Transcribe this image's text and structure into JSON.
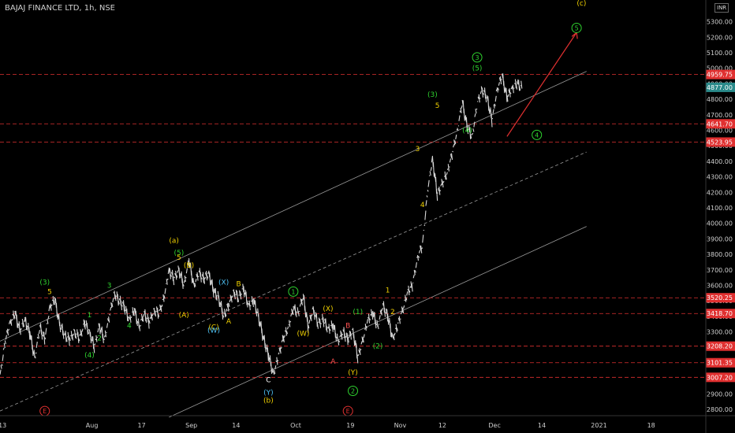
{
  "header": {
    "symbol_title": "BAJAJ FINANCE LTD, 1h, NSE",
    "currency": "INR"
  },
  "chart_data": {
    "type": "line",
    "title": "BAJAJ FINANCE LTD, 1h, NSE",
    "xlabel": "",
    "ylabel": "",
    "ylim": [
      2760,
      5440
    ],
    "grid": false,
    "y_ticks": [
      2800,
      2900,
      3000,
      3100,
      3200,
      3300,
      3400,
      3500,
      3600,
      3700,
      3800,
      3900,
      4000,
      4100,
      4200,
      4300,
      4400,
      4500,
      4600,
      4700,
      4800,
      4900,
      5000,
      5100,
      5200,
      5300
    ],
    "x_ticks": [
      "13",
      "Aug",
      "17",
      "Sep",
      "14",
      "Oct",
      "19",
      "Nov",
      "12",
      "Dec",
      "14",
      "2021",
      "18"
    ],
    "x_tick_pos": [
      0.5,
      18.5,
      28.5,
      38.5,
      47.5,
      59.5,
      70.5,
      80.5,
      89,
      99.5,
      109,
      120.5,
      131
    ],
    "x_range": [
      0,
      142
    ],
    "series": [
      {
        "values": [
          [
            0,
            3010
          ],
          [
            1,
            3230
          ],
          [
            2,
            3360
          ],
          [
            3,
            3420
          ],
          [
            4,
            3310
          ],
          [
            5,
            3380
          ],
          [
            6,
            3290
          ],
          [
            7,
            3130
          ],
          [
            8,
            3330
          ],
          [
            9,
            3250
          ],
          [
            10,
            3460
          ],
          [
            11,
            3510
          ],
          [
            12,
            3350
          ],
          [
            13,
            3280
          ],
          [
            14,
            3250
          ],
          [
            15,
            3300
          ],
          [
            16,
            3260
          ],
          [
            17,
            3360
          ],
          [
            18,
            3300
          ],
          [
            19,
            3200
          ],
          [
            20,
            3340
          ],
          [
            21,
            3250
          ],
          [
            22,
            3400
          ],
          [
            23,
            3550
          ],
          [
            24,
            3500
          ],
          [
            25,
            3460
          ],
          [
            26,
            3380
          ],
          [
            27,
            3440
          ],
          [
            28,
            3330
          ],
          [
            29,
            3420
          ],
          [
            30,
            3360
          ],
          [
            31,
            3440
          ],
          [
            32,
            3420
          ],
          [
            33,
            3520
          ],
          [
            34,
            3700
          ],
          [
            35,
            3640
          ],
          [
            36,
            3700
          ],
          [
            37,
            3600
          ],
          [
            38,
            3760
          ],
          [
            39,
            3600
          ],
          [
            40,
            3680
          ],
          [
            41,
            3640
          ],
          [
            42,
            3680
          ],
          [
            43,
            3560
          ],
          [
            44,
            3520
          ],
          [
            45,
            3400
          ],
          [
            46,
            3470
          ],
          [
            47,
            3560
          ],
          [
            48,
            3520
          ],
          [
            49,
            3580
          ],
          [
            50,
            3470
          ],
          [
            51,
            3500
          ],
          [
            52,
            3400
          ],
          [
            53,
            3260
          ],
          [
            54,
            3150
          ],
          [
            55,
            3030
          ],
          [
            56,
            3140
          ],
          [
            57,
            3260
          ],
          [
            58,
            3330
          ],
          [
            59,
            3450
          ],
          [
            60,
            3420
          ],
          [
            61,
            3530
          ],
          [
            62,
            3330
          ],
          [
            63,
            3450
          ],
          [
            64,
            3350
          ],
          [
            65,
            3380
          ],
          [
            66,
            3320
          ],
          [
            67,
            3340
          ],
          [
            68,
            3240
          ],
          [
            69,
            3300
          ],
          [
            70,
            3250
          ],
          [
            71,
            3310
          ],
          [
            72,
            3130
          ],
          [
            73,
            3250
          ],
          [
            74,
            3380
          ],
          [
            75,
            3420
          ],
          [
            76,
            3330
          ],
          [
            77,
            3470
          ],
          [
            78,
            3400
          ],
          [
            79,
            3260
          ],
          [
            80,
            3340
          ],
          [
            81,
            3440
          ],
          [
            82,
            3560
          ],
          [
            83,
            3600
          ],
          [
            84,
            3780
          ],
          [
            85,
            3860
          ],
          [
            86,
            4200
          ],
          [
            87,
            4420
          ],
          [
            88,
            4180
          ],
          [
            89,
            4260
          ],
          [
            90,
            4330
          ],
          [
            91,
            4450
          ],
          [
            92,
            4600
          ],
          [
            93,
            4780
          ],
          [
            94,
            4620
          ],
          [
            95,
            4560
          ],
          [
            96,
            4770
          ],
          [
            97,
            4860
          ],
          [
            98,
            4810
          ],
          [
            99,
            4660
          ],
          [
            100,
            4860
          ],
          [
            101,
            4950
          ],
          [
            102,
            4810
          ],
          [
            103,
            4870
          ],
          [
            104,
            4900
          ],
          [
            105,
            4877
          ]
        ]
      }
    ],
    "price_levels": [
      {
        "value": 4959.75,
        "label": "4959.75"
      },
      {
        "value": 4641.7,
        "label": "4641.70"
      },
      {
        "value": 4523.95,
        "label": "4523.95"
      },
      {
        "value": 3520.25,
        "label": "3520.25"
      },
      {
        "value": 3418.7,
        "label": "3418.70"
      },
      {
        "value": 3208.2,
        "label": "3208.20"
      },
      {
        "value": 3101.35,
        "label": "3101.35"
      },
      {
        "value": 3007.2,
        "label": "3007.20"
      }
    ],
    "current_price": {
      "value": 4877,
      "label": "4877.00"
    },
    "projection": [
      [
        102,
        4560
      ],
      [
        116,
        5230
      ]
    ],
    "channels": [
      {
        "style": "solid",
        "points": [
          [
            0,
            3240
          ],
          [
            118,
            4980
          ]
        ]
      },
      {
        "style": "dashed",
        "points": [
          [
            0,
            2790
          ],
          [
            118,
            4460
          ]
        ]
      },
      {
        "style": "solid",
        "points": [
          [
            34,
            2750
          ],
          [
            118,
            3980
          ]
        ]
      }
    ],
    "annotations": [
      {
        "text": "(c)",
        "x": 117,
        "y": 5420,
        "color": "#f0d000"
      },
      {
        "text": "5",
        "x": 116,
        "y": 5260,
        "color": "#2fd32f",
        "circle": true
      },
      {
        "text": "3",
        "x": 96,
        "y": 5070,
        "color": "#2fd32f",
        "circle": true
      },
      {
        "text": "(5)",
        "x": 96,
        "y": 5000,
        "color": "#2fd32f"
      },
      {
        "text": "(3)",
        "x": 87,
        "y": 4830,
        "color": "#2fd32f"
      },
      {
        "text": "5",
        "x": 88,
        "y": 4760,
        "color": "#f0d000"
      },
      {
        "text": "(4)",
        "x": 94,
        "y": 4600,
        "color": "#2fd32f"
      },
      {
        "text": "4",
        "x": 108,
        "y": 4570,
        "color": "#2fd32f",
        "circle": true
      },
      {
        "text": "3",
        "x": 84,
        "y": 4480,
        "color": "#f0d000"
      },
      {
        "text": "4",
        "x": 85,
        "y": 4120,
        "color": "#f0d000"
      },
      {
        "text": "1",
        "x": 78,
        "y": 3570,
        "color": "#f0d000"
      },
      {
        "text": "2",
        "x": 79,
        "y": 3430,
        "color": "#f0d000"
      },
      {
        "text": "(2)",
        "x": 76,
        "y": 3210,
        "color": "#2fd32f"
      },
      {
        "text": "(1)",
        "x": 72,
        "y": 3430,
        "color": "#2fd32f"
      },
      {
        "text": "B",
        "x": 70,
        "y": 3340,
        "color": "#ff5050"
      },
      {
        "text": "A",
        "x": 67,
        "y": 3110,
        "color": "#ff5050"
      },
      {
        "text": "(X)",
        "x": 66,
        "y": 3450,
        "color": "#f0d000"
      },
      {
        "text": "(W)",
        "x": 61,
        "y": 3290,
        "color": "#f0d000"
      },
      {
        "text": "(Y)",
        "x": 71,
        "y": 3040,
        "color": "#f0d000"
      },
      {
        "text": "2",
        "x": 71,
        "y": 2920,
        "color": "#2fd32f",
        "circle": true
      },
      {
        "text": "1",
        "x": 59,
        "y": 3560,
        "color": "#2fd32f",
        "circle": true
      },
      {
        "text": "E",
        "x": 70,
        "y": 2790,
        "color": "#e03030",
        "circle": true
      },
      {
        "text": "C",
        "x": 54,
        "y": 2990,
        "color": "#ffffff"
      },
      {
        "text": "(Y)",
        "x": 54,
        "y": 2910,
        "color": "#4fc3f7"
      },
      {
        "text": "(b)",
        "x": 54,
        "y": 2860,
        "color": "#f0d000"
      },
      {
        "text": "B",
        "x": 48,
        "y": 3610,
        "color": "#f0d000"
      },
      {
        "text": "(X)",
        "x": 45,
        "y": 3620,
        "color": "#4fc3f7"
      },
      {
        "text": "A",
        "x": 46,
        "y": 3370,
        "color": "#f0d000"
      },
      {
        "text": "(C)",
        "x": 43,
        "y": 3330,
        "color": "#f0d000"
      },
      {
        "text": "(W)",
        "x": 43,
        "y": 3310,
        "color": "#4fc3f7"
      },
      {
        "text": "(B)",
        "x": 38,
        "y": 3730,
        "color": "#f0d000"
      },
      {
        "text": "(A)",
        "x": 37,
        "y": 3410,
        "color": "#f0d000"
      },
      {
        "text": "(a)",
        "x": 35,
        "y": 3890,
        "color": "#f0d000"
      },
      {
        "text": "(5)",
        "x": 36,
        "y": 3810,
        "color": "#2fd32f"
      },
      {
        "text": "5",
        "x": 36,
        "y": 3780,
        "color": "#f0d000"
      },
      {
        "text": "3",
        "x": 22,
        "y": 3600,
        "color": "#2fd32f"
      },
      {
        "text": "4",
        "x": 26,
        "y": 3340,
        "color": "#2fd32f"
      },
      {
        "text": "1",
        "x": 18,
        "y": 3410,
        "color": "#2fd32f"
      },
      {
        "text": "2",
        "x": 20,
        "y": 3260,
        "color": "#2fd32f"
      },
      {
        "text": "(4)",
        "x": 18,
        "y": 3150,
        "color": "#2fd32f"
      },
      {
        "text": "(3)",
        "x": 9,
        "y": 3620,
        "color": "#2fd32f"
      },
      {
        "text": "5",
        "x": 10,
        "y": 3560,
        "color": "#f0d000"
      },
      {
        "text": "E",
        "x": 9,
        "y": 2790,
        "color": "#e03030",
        "circle": true
      }
    ],
    "colors": {
      "level": "#e03030",
      "current": "#2a8a8a",
      "projection": "#e03030",
      "channel": "#9a9a9a",
      "candle": "#d8d8d8"
    }
  }
}
